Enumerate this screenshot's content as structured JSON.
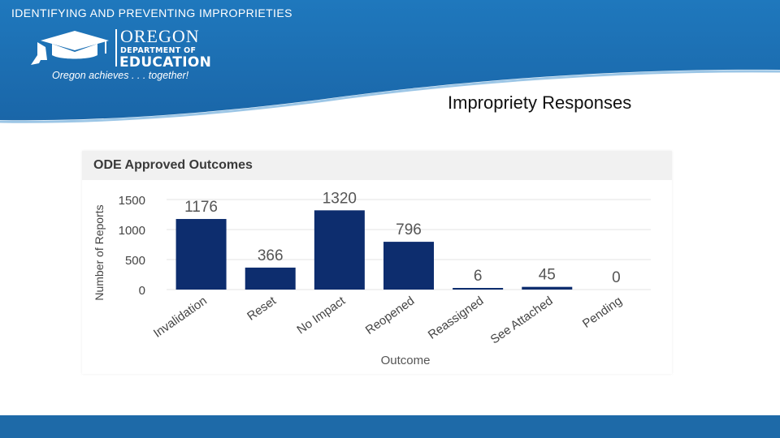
{
  "slide": {
    "title": "IDENTIFYING AND PREVENTING IMPROPRIETIES",
    "subtitle": "Impropriety Responses"
  },
  "logo": {
    "line1": "OREGON",
    "line2": "DEPARTMENT OF",
    "line3": "EDUCATION",
    "tagline": "Oregon achieves . . . together!"
  },
  "colors": {
    "header_blue": "#1f72b5",
    "bar_navy": "#0d2d6e",
    "bottom_bar": "#1e6aa8"
  },
  "chart_data": {
    "type": "bar",
    "title": "ODE Approved Outcomes",
    "xlabel": "Outcome",
    "ylabel": "Number of Reports",
    "categories": [
      "Invalidation",
      "Reset",
      "No Impact",
      "Reopened",
      "Reassigned",
      "See Attached",
      "Pending"
    ],
    "values": [
      1176,
      366,
      1320,
      796,
      6,
      45,
      0
    ],
    "y_ticks": [
      "0",
      "500",
      "1000",
      "1500"
    ],
    "ylim": [
      0,
      1500
    ],
    "grid": true,
    "bar_color": "#0d2d6e",
    "data_labels": true
  }
}
